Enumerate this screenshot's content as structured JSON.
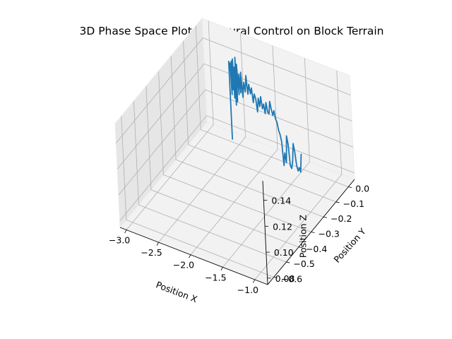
{
  "chart_data": {
    "type": "line",
    "projection": "3d",
    "title": "3D Phase Space Plot for Neural Control on Block Terrain",
    "xlabel": "Position X",
    "ylabel": "Position Y",
    "zlabel": "Position Z",
    "xlim": [
      -3.1,
      -0.8
    ],
    "ylim": [
      -0.65,
      0.05
    ],
    "zlim": [
      0.075,
      0.155
    ],
    "xticks": [
      "−3.0",
      "−2.5",
      "−2.0",
      "−1.5",
      "−1.0"
    ],
    "yticks": [
      "−0.6",
      "−0.5",
      "−0.4",
      "−0.3",
      "−0.2",
      "−0.1",
      "0.0"
    ],
    "zticks": [
      "0.08",
      "0.10",
      "0.12",
      "0.14"
    ],
    "grid": true,
    "series": [
      {
        "color": "#1f77b4",
        "points": [
          [
            -2.5,
            -0.05,
            0.085
          ],
          [
            -2.5,
            -0.05,
            0.145
          ],
          [
            -2.49,
            -0.05,
            0.138
          ],
          [
            -2.48,
            -0.05,
            0.144
          ],
          [
            -2.47,
            -0.05,
            0.12
          ],
          [
            -2.46,
            -0.05,
            0.146
          ],
          [
            -2.45,
            -0.05,
            0.124
          ],
          [
            -2.44,
            -0.05,
            0.148
          ],
          [
            -2.43,
            -0.05,
            0.118
          ],
          [
            -2.42,
            -0.05,
            0.142
          ],
          [
            -2.41,
            -0.05,
            0.113
          ],
          [
            -2.4,
            -0.05,
            0.15
          ],
          [
            -2.39,
            -0.05,
            0.116
          ],
          [
            -2.38,
            -0.05,
            0.145
          ],
          [
            -2.36,
            -0.05,
            0.122
          ],
          [
            -2.35,
            -0.05,
            0.138
          ],
          [
            -2.33,
            -0.05,
            0.124
          ],
          [
            -2.32,
            -0.05,
            0.14
          ],
          [
            -2.3,
            -0.05,
            0.121
          ],
          [
            -2.28,
            -0.05,
            0.133
          ],
          [
            -2.26,
            -0.05,
            0.126
          ],
          [
            -2.24,
            -0.05,
            0.139
          ],
          [
            -2.22,
            -0.05,
            0.125
          ],
          [
            -2.2,
            -0.05,
            0.133
          ],
          [
            -2.18,
            -0.05,
            0.126
          ],
          [
            -2.16,
            -0.05,
            0.131
          ],
          [
            -2.14,
            -0.05,
            0.12
          ],
          [
            -2.12,
            -0.05,
            0.127
          ],
          [
            -2.1,
            -0.05,
            0.124
          ],
          [
            -2.08,
            -0.05,
            0.114
          ],
          [
            -2.06,
            -0.05,
            0.125
          ],
          [
            -2.04,
            -0.05,
            0.119
          ],
          [
            -2.02,
            -0.05,
            0.127
          ],
          [
            -2.0,
            -0.05,
            0.118
          ],
          [
            -1.98,
            -0.05,
            0.122
          ],
          [
            -1.96,
            -0.05,
            0.115
          ],
          [
            -1.94,
            -0.05,
            0.124
          ],
          [
            -1.92,
            -0.05,
            0.117
          ],
          [
            -1.9,
            -0.05,
            0.116
          ],
          [
            -1.88,
            -0.05,
            0.126
          ],
          [
            -1.86,
            -0.05,
            0.12
          ],
          [
            -1.84,
            -0.05,
            0.116
          ],
          [
            -1.82,
            -0.05,
            0.12
          ],
          [
            -1.8,
            -0.05,
            0.114
          ],
          [
            -1.78,
            -0.05,
            0.112
          ],
          [
            -1.76,
            -0.05,
            0.106
          ],
          [
            -1.74,
            -0.05,
            0.103
          ],
          [
            -1.72,
            -0.05,
            0.098
          ],
          [
            -1.7,
            -0.05,
            0.08
          ],
          [
            -1.68,
            -0.05,
            0.09
          ],
          [
            -1.66,
            -0.05,
            0.083
          ],
          [
            -1.64,
            -0.05,
            0.104
          ],
          [
            -1.62,
            -0.05,
            0.098
          ],
          [
            -1.6,
            -0.05,
            0.082
          ],
          [
            -1.58,
            -0.05,
            0.08
          ],
          [
            -1.56,
            -0.05,
            0.086
          ],
          [
            -1.54,
            -0.05,
            0.1
          ],
          [
            -1.52,
            -0.05,
            0.094
          ],
          [
            -1.5,
            -0.05,
            0.084
          ],
          [
            -1.48,
            -0.05,
            0.08
          ],
          [
            -1.46,
            -0.05,
            0.083
          ],
          [
            -1.44,
            -0.05,
            0.08
          ],
          [
            -1.42,
            -0.05,
            0.094
          ]
        ]
      }
    ]
  }
}
